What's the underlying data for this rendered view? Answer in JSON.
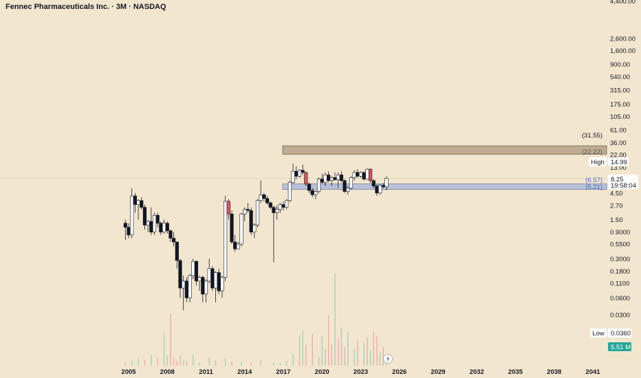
{
  "header": {
    "title": "Fennec Pharmaceuticals Inc. · 3M · NASDAQ"
  },
  "price_axis": {
    "ticks": [
      "4,400.00",
      "2,600.00",
      "1,600.00",
      "900.00",
      "540.00",
      "315.00",
      "175.00",
      "105.00",
      "61.00",
      "36.00",
      "22.00",
      "13.00",
      "4.50",
      "2.70",
      "1.50",
      "0.9000",
      "0.5500",
      "0.3000",
      "0.1800",
      "0.1100",
      "0.0600",
      "0.0300"
    ]
  },
  "time_axis": {
    "ticks": [
      "2005",
      "2008",
      "2011",
      "2014",
      "2017",
      "2020",
      "2023",
      "2026",
      "2029",
      "2032",
      "2035",
      "2038",
      "2041"
    ]
  },
  "labels": {
    "zone_upper_top": "(31.55)",
    "zone_upper_bottom": "(22.22)",
    "zone_lower_top": "(6.57)",
    "zone_lower_bottom": "(5.21)",
    "high_label": "High",
    "high_value": "14.99",
    "current_price": "8.25",
    "countdown": "19:58:04",
    "low_label": "Low",
    "low_value": "0.0360",
    "volume": "5.51 M"
  },
  "colors": {
    "background": "#f2e6cf",
    "candle_up": "#ffffff",
    "candle_down": "#131722",
    "candle_down_highlight": "#e0555f",
    "volume_up": "#9fcfb7",
    "volume_down": "#f0a8a3",
    "zone_upper": "#bca98d",
    "zone_lower": "#b7c0da",
    "volume_badge": "#26a69a"
  },
  "chart_data": {
    "type": "candlestick",
    "scale": "log",
    "ylim": [
      0.03,
      4400
    ],
    "xlim": [
      2004.5,
      2042
    ],
    "zones": [
      {
        "top": 31.55,
        "bottom": 22.22
      },
      {
        "top": 6.57,
        "bottom": 5.21
      }
    ],
    "high": 14.99,
    "low": 0.036,
    "last": 8.25,
    "candles": [
      {
        "t": 2004.75,
        "o": 1.3,
        "h": 1.5,
        "l": 0.65,
        "c": 1.1
      },
      {
        "t": 2005.0,
        "o": 1.1,
        "h": 1.3,
        "l": 0.7,
        "c": 0.8
      },
      {
        "t": 2005.25,
        "o": 0.8,
        "h": 5.5,
        "l": 0.7,
        "c": 4.0
      },
      {
        "t": 2005.5,
        "o": 4.0,
        "h": 4.5,
        "l": 2.0,
        "c": 2.8
      },
      {
        "t": 2005.75,
        "o": 2.8,
        "h": 3.5,
        "l": 1.5,
        "c": 3.3
      },
      {
        "t": 2006.0,
        "o": 3.3,
        "h": 3.8,
        "l": 2.3,
        "c": 2.5
      },
      {
        "t": 2006.25,
        "o": 2.5,
        "h": 2.8,
        "l": 1.0,
        "c": 1.2
      },
      {
        "t": 2006.5,
        "o": 1.2,
        "h": 1.5,
        "l": 0.9,
        "c": 1.4
      },
      {
        "t": 2006.75,
        "o": 1.4,
        "h": 2.5,
        "l": 0.8,
        "c": 0.9
      },
      {
        "t": 2007.0,
        "o": 0.9,
        "h": 2.0,
        "l": 0.8,
        "c": 1.8
      },
      {
        "t": 2007.25,
        "o": 1.8,
        "h": 2.0,
        "l": 1.1,
        "c": 1.3
      },
      {
        "t": 2007.5,
        "o": 1.3,
        "h": 1.4,
        "l": 0.8,
        "c": 0.9
      },
      {
        "t": 2007.75,
        "o": 0.9,
        "h": 1.5,
        "l": 0.85,
        "c": 1.3
      },
      {
        "t": 2008.0,
        "o": 1.3,
        "h": 1.4,
        "l": 0.85,
        "c": 0.95
      },
      {
        "t": 2008.25,
        "o": 0.95,
        "h": 1.0,
        "l": 0.6,
        "c": 0.7
      },
      {
        "t": 2008.5,
        "o": 0.7,
        "h": 0.9,
        "l": 0.5,
        "c": 0.6
      },
      {
        "t": 2008.75,
        "o": 0.6,
        "h": 0.6,
        "l": 0.2,
        "c": 0.28
      },
      {
        "t": 2009.0,
        "o": 0.28,
        "h": 0.3,
        "l": 0.06,
        "c": 0.09
      },
      {
        "t": 2009.25,
        "o": 0.09,
        "h": 0.15,
        "l": 0.036,
        "c": 0.12
      },
      {
        "t": 2009.5,
        "o": 0.12,
        "h": 0.14,
        "l": 0.05,
        "c": 0.06
      },
      {
        "t": 2009.75,
        "o": 0.06,
        "h": 0.16,
        "l": 0.05,
        "c": 0.15
      },
      {
        "t": 2010.0,
        "o": 0.15,
        "h": 0.3,
        "l": 0.13,
        "c": 0.27
      },
      {
        "t": 2010.25,
        "o": 0.27,
        "h": 0.28,
        "l": 0.1,
        "c": 0.12
      },
      {
        "t": 2010.5,
        "o": 0.12,
        "h": 0.15,
        "l": 0.08,
        "c": 0.14
      },
      {
        "t": 2010.75,
        "o": 0.14,
        "h": 0.15,
        "l": 0.05,
        "c": 0.07
      },
      {
        "t": 2011.0,
        "o": 0.07,
        "h": 0.13,
        "l": 0.05,
        "c": 0.12
      },
      {
        "t": 2011.25,
        "o": 0.12,
        "h": 0.3,
        "l": 0.11,
        "c": 0.2
      },
      {
        "t": 2011.5,
        "o": 0.2,
        "h": 0.22,
        "l": 0.08,
        "c": 0.09
      },
      {
        "t": 2011.75,
        "o": 0.09,
        "h": 0.18,
        "l": 0.05,
        "c": 0.17
      },
      {
        "t": 2012.0,
        "o": 0.17,
        "h": 0.2,
        "l": 0.07,
        "c": 0.08
      },
      {
        "t": 2012.25,
        "o": 0.08,
        "h": 0.15,
        "l": 0.06,
        "c": 0.14
      },
      {
        "t": 2012.5,
        "o": 0.14,
        "h": 4.0,
        "l": 0.12,
        "c": 3.2
      },
      {
        "t": 2012.75,
        "o": 3.2,
        "h": 3.5,
        "l": 1.5,
        "c": 1.9
      },
      {
        "t": 2013.0,
        "o": 1.9,
        "h": 2.2,
        "l": 0.55,
        "c": 0.6
      },
      {
        "t": 2013.25,
        "o": 0.6,
        "h": 0.8,
        "l": 0.4,
        "c": 0.45
      },
      {
        "t": 2013.5,
        "o": 0.45,
        "h": 0.6,
        "l": 0.45,
        "c": 0.55
      },
      {
        "t": 2013.75,
        "o": 0.55,
        "h": 2.0,
        "l": 0.5,
        "c": 1.9
      },
      {
        "t": 2014.0,
        "o": 1.9,
        "h": 2.5,
        "l": 1.4,
        "c": 2.3
      },
      {
        "t": 2014.25,
        "o": 2.3,
        "h": 3.0,
        "l": 2.0,
        "c": 2.2
      },
      {
        "t": 2014.5,
        "o": 2.2,
        "h": 2.5,
        "l": 0.8,
        "c": 0.9
      },
      {
        "t": 2014.75,
        "o": 0.9,
        "h": 1.3,
        "l": 0.7,
        "c": 1.2
      },
      {
        "t": 2015.0,
        "o": 1.2,
        "h": 3.5,
        "l": 1.1,
        "c": 3.3
      },
      {
        "t": 2015.25,
        "o": 3.3,
        "h": 7.5,
        "l": 3.0,
        "c": 4.2
      },
      {
        "t": 2015.5,
        "o": 4.2,
        "h": 4.5,
        "l": 3.2,
        "c": 3.6
      },
      {
        "t": 2015.75,
        "o": 3.6,
        "h": 4.0,
        "l": 2.8,
        "c": 3.0
      },
      {
        "t": 2016.0,
        "o": 3.0,
        "h": 3.2,
        "l": 2.3,
        "c": 2.5
      },
      {
        "t": 2016.25,
        "o": 2.5,
        "h": 2.7,
        "l": 0.26,
        "c": 2.0
      },
      {
        "t": 2016.5,
        "o": 2.0,
        "h": 2.7,
        "l": 1.5,
        "c": 2.3
      },
      {
        "t": 2016.75,
        "o": 2.3,
        "h": 3.0,
        "l": 2.0,
        "c": 2.8
      },
      {
        "t": 2017.0,
        "o": 2.8,
        "h": 3.2,
        "l": 2.2,
        "c": 2.5
      },
      {
        "t": 2017.25,
        "o": 2.5,
        "h": 3.5,
        "l": 2.3,
        "c": 3.3
      },
      {
        "t": 2017.5,
        "o": 3.3,
        "h": 7.5,
        "l": 3.1,
        "c": 7.0
      },
      {
        "t": 2017.75,
        "o": 7.0,
        "h": 14.99,
        "l": 6.5,
        "c": 11.0
      },
      {
        "t": 2018.0,
        "o": 11.0,
        "h": 13.5,
        "l": 8.0,
        "c": 9.0
      },
      {
        "t": 2018.25,
        "o": 9.0,
        "h": 12.0,
        "l": 8.5,
        "c": 11.5
      },
      {
        "t": 2018.5,
        "o": 11.5,
        "h": 14.5,
        "l": 9.5,
        "c": 10.5
      },
      {
        "t": 2018.75,
        "o": 10.5,
        "h": 11.0,
        "l": 6.0,
        "c": 6.5
      },
      {
        "t": 2019.0,
        "o": 6.5,
        "h": 7.0,
        "l": 4.5,
        "c": 5.0
      },
      {
        "t": 2019.25,
        "o": 5.0,
        "h": 5.5,
        "l": 3.8,
        "c": 4.2
      },
      {
        "t": 2019.5,
        "o": 4.2,
        "h": 5.0,
        "l": 3.5,
        "c": 4.8
      },
      {
        "t": 2019.75,
        "o": 4.8,
        "h": 8.5,
        "l": 4.5,
        "c": 8.0
      },
      {
        "t": 2020.0,
        "o": 8.0,
        "h": 10.0,
        "l": 6.5,
        "c": 7.0
      },
      {
        "t": 2020.25,
        "o": 7.0,
        "h": 10.5,
        "l": 6.0,
        "c": 9.5
      },
      {
        "t": 2020.5,
        "o": 9.5,
        "h": 11.0,
        "l": 7.0,
        "c": 7.5
      },
      {
        "t": 2020.75,
        "o": 7.5,
        "h": 9.0,
        "l": 6.0,
        "c": 8.5
      },
      {
        "t": 2021.0,
        "o": 8.5,
        "h": 10.5,
        "l": 7.5,
        "c": 7.8
      },
      {
        "t": 2021.25,
        "o": 7.8,
        "h": 10.5,
        "l": 5.5,
        "c": 9.5
      },
      {
        "t": 2021.5,
        "o": 9.5,
        "h": 11.0,
        "l": 7.0,
        "c": 7.5
      },
      {
        "t": 2021.75,
        "o": 7.5,
        "h": 8.0,
        "l": 4.5,
        "c": 4.8
      },
      {
        "t": 2022.0,
        "o": 4.8,
        "h": 6.0,
        "l": 4.2,
        "c": 5.5
      },
      {
        "t": 2022.25,
        "o": 5.5,
        "h": 9.0,
        "l": 5.2,
        "c": 8.5
      },
      {
        "t": 2022.5,
        "o": 8.5,
        "h": 11.5,
        "l": 7.5,
        "c": 10.5
      },
      {
        "t": 2022.75,
        "o": 10.5,
        "h": 12.0,
        "l": 8.5,
        "c": 9.0
      },
      {
        "t": 2023.0,
        "o": 9.0,
        "h": 11.0,
        "l": 8.5,
        "c": 10.5
      },
      {
        "t": 2023.25,
        "o": 10.5,
        "h": 11.0,
        "l": 7.5,
        "c": 8.0
      },
      {
        "t": 2023.5,
        "o": 8.0,
        "h": 12.5,
        "l": 7.8,
        "c": 12.0
      },
      {
        "t": 2023.75,
        "o": 12.0,
        "h": 12.5,
        "l": 6.8,
        "c": 7.5
      },
      {
        "t": 2024.0,
        "o": 7.5,
        "h": 8.0,
        "l": 5.5,
        "c": 6.0
      },
      {
        "t": 2024.25,
        "o": 6.0,
        "h": 6.5,
        "l": 4.0,
        "c": 4.5
      },
      {
        "t": 2024.5,
        "o": 4.5,
        "h": 6.5,
        "l": 4.2,
        "c": 6.2
      },
      {
        "t": 2024.75,
        "o": 6.2,
        "h": 6.8,
        "l": 5.5,
        "c": 5.8
      },
      {
        "t": 2025.0,
        "o": 5.8,
        "h": 9.0,
        "l": 5.0,
        "c": 8.25
      }
    ],
    "volume": [
      {
        "t": 2004.75,
        "v": 0.4,
        "up": false
      },
      {
        "t": 2005.25,
        "v": 0.6,
        "up": true
      },
      {
        "t": 2005.75,
        "v": 0.8,
        "up": true
      },
      {
        "t": 2006.25,
        "v": 0.7,
        "up": false
      },
      {
        "t": 2006.75,
        "v": 1.3,
        "up": true
      },
      {
        "t": 2007.25,
        "v": 1.0,
        "up": false
      },
      {
        "t": 2007.75,
        "v": 3.8,
        "up": true
      },
      {
        "t": 2008.0,
        "v": 1.2,
        "up": true
      },
      {
        "t": 2008.25,
        "v": 6.2,
        "up": false
      },
      {
        "t": 2008.5,
        "v": 1.0,
        "up": false
      },
      {
        "t": 2008.75,
        "v": 0.6,
        "up": false
      },
      {
        "t": 2009.0,
        "v": 1.2,
        "up": false
      },
      {
        "t": 2009.25,
        "v": 0.7,
        "up": true
      },
      {
        "t": 2009.5,
        "v": 0.5,
        "up": false
      },
      {
        "t": 2010.0,
        "v": 1.3,
        "up": true
      },
      {
        "t": 2010.5,
        "v": 0.4,
        "up": true
      },
      {
        "t": 2011.25,
        "v": 1.0,
        "up": true
      },
      {
        "t": 2011.75,
        "v": 0.6,
        "up": true
      },
      {
        "t": 2012.5,
        "v": 0.8,
        "up": true
      },
      {
        "t": 2013.0,
        "v": 0.5,
        "up": false
      },
      {
        "t": 2013.75,
        "v": 0.5,
        "up": true
      },
      {
        "t": 2014.5,
        "v": 0.4,
        "up": false
      },
      {
        "t": 2015.25,
        "v": 0.7,
        "up": true
      },
      {
        "t": 2016.25,
        "v": 0.4,
        "up": true
      },
      {
        "t": 2016.75,
        "v": 0.3,
        "up": true
      },
      {
        "t": 2017.25,
        "v": 0.6,
        "up": true
      },
      {
        "t": 2017.75,
        "v": 1.4,
        "up": true
      },
      {
        "t": 2018.25,
        "v": 3.5,
        "up": false
      },
      {
        "t": 2018.5,
        "v": 4.2,
        "up": true
      },
      {
        "t": 2018.75,
        "v": 2.5,
        "up": false
      },
      {
        "t": 2019.25,
        "v": 3.8,
        "up": false
      },
      {
        "t": 2019.75,
        "v": 1.0,
        "up": true
      },
      {
        "t": 2020.0,
        "v": 3.5,
        "up": true
      },
      {
        "t": 2020.25,
        "v": 2.0,
        "up": true
      },
      {
        "t": 2020.5,
        "v": 6.0,
        "up": false
      },
      {
        "t": 2020.75,
        "v": 2.5,
        "up": false
      },
      {
        "t": 2021.0,
        "v": 11.0,
        "up": true
      },
      {
        "t": 2021.25,
        "v": 3.2,
        "up": false
      },
      {
        "t": 2021.5,
        "v": 4.5,
        "up": true
      },
      {
        "t": 2021.75,
        "v": 2.2,
        "up": false
      },
      {
        "t": 2022.0,
        "v": 4.0,
        "up": true
      },
      {
        "t": 2022.5,
        "v": 2.0,
        "up": true
      },
      {
        "t": 2022.75,
        "v": 3.0,
        "up": false
      },
      {
        "t": 2023.25,
        "v": 2.7,
        "up": true
      },
      {
        "t": 2023.5,
        "v": 3.4,
        "up": false
      },
      {
        "t": 2023.75,
        "v": 1.8,
        "up": true
      },
      {
        "t": 2024.0,
        "v": 4.0,
        "up": false
      },
      {
        "t": 2024.25,
        "v": 3.5,
        "up": false
      },
      {
        "t": 2024.5,
        "v": 1.6,
        "up": true
      },
      {
        "t": 2024.75,
        "v": 2.2,
        "up": false
      },
      {
        "t": 2025.0,
        "v": 1.2,
        "up": true
      }
    ]
  }
}
